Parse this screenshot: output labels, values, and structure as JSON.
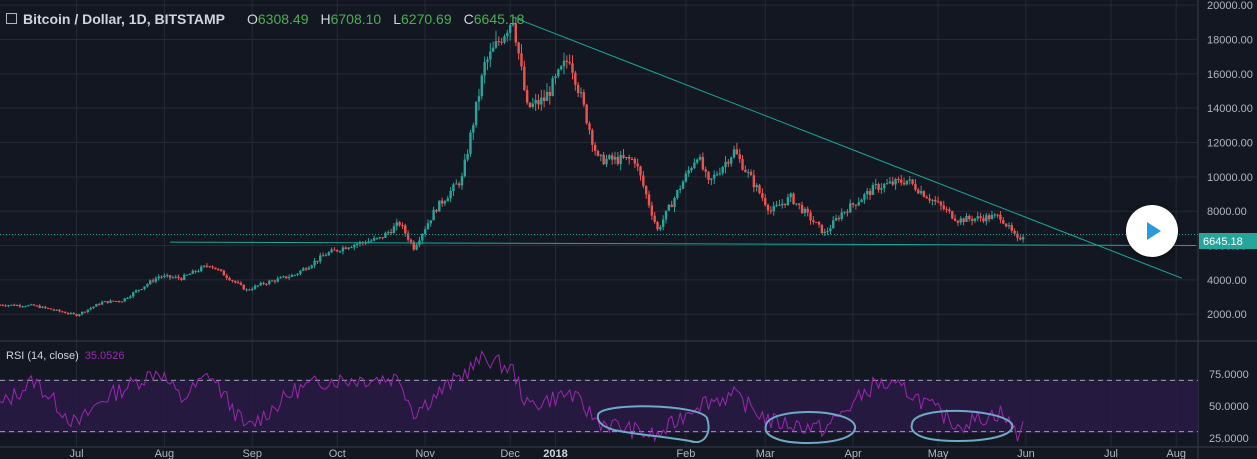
{
  "header": {
    "symbol": "Bitcoin / Dollar, 1D, BITSTAMP",
    "open_label": "O",
    "open": "6308.49",
    "high_label": "H",
    "high": "6708.10",
    "low_label": "L",
    "low": "6270.69",
    "close_label": "C",
    "close": "6645.18"
  },
  "rsi": {
    "label": "RSI (14, close)",
    "value": "35.0526"
  },
  "colors": {
    "background": "#131722",
    "grid": "#252a37",
    "up": "#26a69a",
    "down": "#ef5350",
    "rsi_line": "#9c27b0",
    "trendline": "#1aa89a",
    "annotation": "#6fa8c8"
  },
  "chart_data": [
    {
      "type": "candlestick",
      "title": "Bitcoin / Dollar, 1D, BITSTAMP",
      "x_range": [
        "2017-06-19",
        "2018-08-15"
      ],
      "ylim": [
        500,
        20300
      ],
      "y_ticks": [
        "20000.00",
        "18000.00",
        "16000.00",
        "14000.00",
        "12000.00",
        "10000.00",
        "8000.00",
        "6000.00",
        "4000.00",
        "2000.00"
      ],
      "x_ticks": [
        "Jul",
        "Aug",
        "Sep",
        "Oct",
        "Nov",
        "Dec",
        "2018",
        "Feb",
        "Mar",
        "Apr",
        "May",
        "Jun",
        "Jul",
        "Aug"
      ],
      "last_price": "6645.18",
      "price_path": [
        [
          "2017-06-19",
          2550
        ],
        [
          "2017-07-01",
          2500
        ],
        [
          "2017-07-16",
          1950
        ],
        [
          "2017-07-25",
          2700
        ],
        [
          "2017-08-01",
          2800
        ],
        [
          "2017-08-14",
          4200
        ],
        [
          "2017-08-22",
          4100
        ],
        [
          "2017-09-01",
          4900
        ],
        [
          "2017-09-14",
          3400
        ],
        [
          "2017-09-20",
          3800
        ],
        [
          "2017-10-01",
          4300
        ],
        [
          "2017-10-12",
          5500
        ],
        [
          "2017-10-20",
          6000
        ],
        [
          "2017-10-31",
          6400
        ],
        [
          "2017-11-07",
          7300
        ],
        [
          "2017-11-12",
          5900
        ],
        [
          "2017-11-20",
          8200
        ],
        [
          "2017-11-29",
          9900
        ],
        [
          "2017-12-07",
          16500
        ],
        [
          "2017-12-17",
          19300
        ],
        [
          "2017-12-22",
          14000
        ],
        [
          "2017-12-28",
          14500
        ],
        [
          "2018-01-06",
          17000
        ],
        [
          "2018-01-16",
          11000
        ],
        [
          "2018-01-29",
          11000
        ],
        [
          "2018-02-06",
          6900
        ],
        [
          "2018-02-20",
          11300
        ],
        [
          "2018-02-24",
          9600
        ],
        [
          "2018-03-05",
          11500
        ],
        [
          "2018-03-18",
          8000
        ],
        [
          "2018-03-25",
          8800
        ],
        [
          "2018-04-06",
          6700
        ],
        [
          "2018-04-12",
          7900
        ],
        [
          "2018-04-24",
          9400
        ],
        [
          "2018-05-05",
          9800
        ],
        [
          "2018-05-23",
          7500
        ],
        [
          "2018-06-07",
          7700
        ],
        [
          "2018-06-13",
          6300
        ],
        [
          "2018-06-15",
          6645
        ]
      ],
      "lines": [
        {
          "name": "trendline",
          "from": [
            "2017-12-17",
            19300
          ],
          "to": [
            "2018-08-10",
            4100
          ]
        },
        {
          "name": "support",
          "from": [
            "2017-08-18",
            6200
          ],
          "to": [
            "2018-08-15",
            6000
          ]
        },
        {
          "name": "last_price",
          "value": 6645.18
        }
      ]
    },
    {
      "type": "line",
      "title": "RSI (14, close)",
      "ylim": [
        18,
        100
      ],
      "y_ticks": [
        "75.0000",
        "50.0000",
        "25.0000"
      ],
      "bands": [
        70,
        30
      ],
      "rsi_path": [
        [
          "2017-06-19",
          50
        ],
        [
          "2017-07-01",
          70
        ],
        [
          "2017-07-16",
          35
        ],
        [
          "2017-07-25",
          55
        ],
        [
          "2017-08-14",
          78
        ],
        [
          "2017-08-22",
          55
        ],
        [
          "2017-09-01",
          75
        ],
        [
          "2017-09-14",
          32
        ],
        [
          "2017-10-01",
          62
        ],
        [
          "2017-10-12",
          70
        ],
        [
          "2017-11-07",
          72
        ],
        [
          "2017-11-12",
          45
        ],
        [
          "2017-12-07",
          88
        ],
        [
          "2017-12-17",
          78
        ],
        [
          "2017-12-22",
          50
        ],
        [
          "2018-01-06",
          60
        ],
        [
          "2018-01-16",
          38
        ],
        [
          "2018-02-06",
          26
        ],
        [
          "2018-02-20",
          52
        ],
        [
          "2018-03-05",
          58
        ],
        [
          "2018-03-18",
          38
        ],
        [
          "2018-04-06",
          32
        ],
        [
          "2018-04-24",
          68
        ],
        [
          "2018-05-05",
          62
        ],
        [
          "2018-05-23",
          35
        ],
        [
          "2018-06-07",
          45
        ],
        [
          "2018-06-13",
          28
        ],
        [
          "2018-06-15",
          35
        ]
      ]
    }
  ]
}
